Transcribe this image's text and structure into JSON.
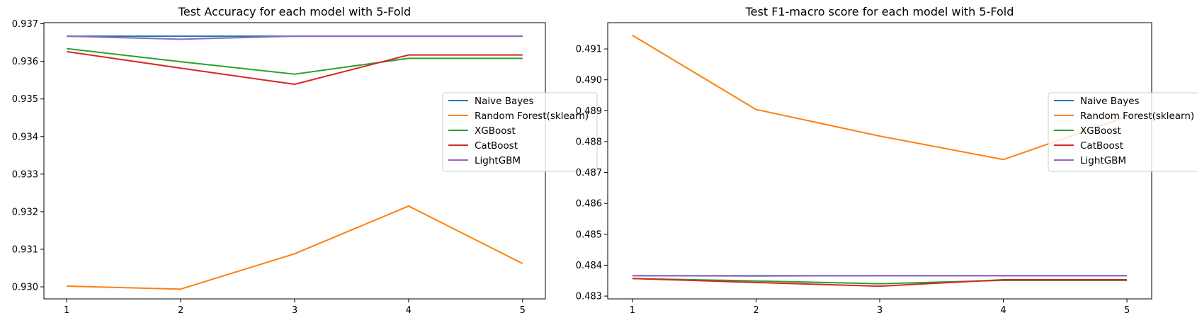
{
  "chart_data": [
    {
      "type": "line",
      "title": "Test Accuracy for each model with 5-Fold",
      "xlabel": "",
      "ylabel": "",
      "x": [
        1,
        2,
        3,
        4,
        5
      ],
      "xticks": [
        1,
        2,
        3,
        4,
        5
      ],
      "yticks": [
        0.93,
        0.931,
        0.932,
        0.933,
        0.934,
        0.935,
        0.936,
        0.937
      ],
      "ytick_labels": [
        "0.930",
        "0.931",
        "0.932",
        "0.933",
        "0.934",
        "0.935",
        "0.936",
        "0.937"
      ],
      "xlim": [
        0.8,
        5.2
      ],
      "ylim": [
        0.92968,
        0.93703
      ],
      "grid": false,
      "legend_position": "center-right",
      "series": [
        {
          "name": "Naive Bayes",
          "color": "#1f77b4",
          "values": [
            0.93667,
            0.93667,
            0.93667,
            0.93667,
            0.93667
          ]
        },
        {
          "name": "Random Forest(sklearn)",
          "color": "#ff7f0e",
          "values": [
            0.93002,
            0.92994,
            0.93088,
            0.93215,
            0.93062
          ]
        },
        {
          "name": "XGBoost",
          "color": "#2ca02c",
          "values": [
            0.93634,
            0.93599,
            0.93566,
            0.93608,
            0.93608
          ]
        },
        {
          "name": "CatBoost",
          "color": "#d62728",
          "values": [
            0.93626,
            0.93582,
            0.93539,
            0.93617,
            0.93617
          ]
        },
        {
          "name": "LightGBM",
          "color": "#9467bd",
          "values": [
            0.93667,
            0.93659,
            0.93667,
            0.93667,
            0.93667
          ]
        }
      ]
    },
    {
      "type": "line",
      "title": "Test F1-macro score for each model with 5-Fold",
      "xlabel": "",
      "ylabel": "",
      "x": [
        1,
        2,
        3,
        4,
        5
      ],
      "xticks": [
        1,
        2,
        3,
        4,
        5
      ],
      "yticks": [
        0.483,
        0.484,
        0.485,
        0.486,
        0.487,
        0.488,
        0.489,
        0.49,
        0.491
      ],
      "ytick_labels": [
        "0.483",
        "0.484",
        "0.485",
        "0.486",
        "0.487",
        "0.488",
        "0.489",
        "0.490",
        "0.491"
      ],
      "xlim": [
        0.8,
        5.2
      ],
      "ylim": [
        0.48291,
        0.49185
      ],
      "grid": false,
      "legend_position": "center-right",
      "series": [
        {
          "name": "Naive Bayes",
          "color": "#1f77b4",
          "values": [
            0.48366,
            0.48366,
            0.48366,
            0.48366,
            0.48366
          ]
        },
        {
          "name": "Random Forest(sklearn)",
          "color": "#ff7f0e",
          "values": [
            0.49144,
            0.48904,
            0.48818,
            0.48742,
            0.48881
          ]
        },
        {
          "name": "XGBoost",
          "color": "#2ca02c",
          "values": [
            0.48357,
            0.48349,
            0.4834,
            0.48351,
            0.48351
          ]
        },
        {
          "name": "CatBoost",
          "color": "#d62728",
          "values": [
            0.48357,
            0.48344,
            0.48332,
            0.48353,
            0.48353
          ]
        },
        {
          "name": "LightGBM",
          "color": "#9467bd",
          "values": [
            0.48366,
            0.48365,
            0.48366,
            0.48366,
            0.48366
          ]
        }
      ]
    }
  ]
}
